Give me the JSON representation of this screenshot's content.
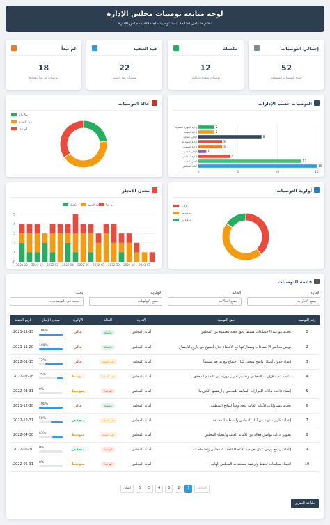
{
  "header": {
    "title": "لوحة متابعة توصيات مجلس الإدارة",
    "subtitle": "نظام متكامل لمتابعة تنفيذ توصيات اجتماعات مجلس الإدارة"
  },
  "stats": [
    {
      "title": "إجمالي التوصيات",
      "value": 52,
      "subtitle": "جميع التوصيات المسجلة",
      "color": "#7f8c8d"
    },
    {
      "title": "مكتملة",
      "value": 12,
      "subtitle": "توصيات منفذة بالكامل",
      "color": "#27ae60"
    },
    {
      "title": "قيد التنفيذ",
      "value": 22,
      "subtitle": "توصيات قيد التنفيذ",
      "color": "#3498db"
    },
    {
      "title": "لم تبدأ",
      "value": 18,
      "subtitle": "توصيات لم يبدأ تنفيذها",
      "color": "#e67e22"
    }
  ],
  "chart_data": [
    {
      "type": "doughnut",
      "title": "حالة التوصيات",
      "categories": [
        "مكتملة",
        "قيد التنفيذ",
        "لم تبدأ"
      ],
      "values": [
        12,
        22,
        18
      ],
      "colors": [
        "#27ae60",
        "#f39c12",
        "#e74c3c"
      ]
    },
    {
      "type": "hbar",
      "title": "التوصيات حسب الإدارات",
      "categories": [
        "إدارة الموارد البشرية",
        "إدارة الجودة",
        "الإدارة المالية",
        "إدارة المشاريع",
        "إدارة التسويق",
        "الإدارة القانونية",
        "إدارة المخاطر",
        "الإدارة العامة",
        "أمانة المجلس"
      ],
      "values": [
        2,
        2,
        8,
        3,
        3,
        1,
        4,
        13,
        15
      ],
      "colors": [
        "#27ae60",
        "#f39c12",
        "#34495e",
        "#e74c3c",
        "#e67e22",
        "#9b59b6",
        "#e74c3c",
        "#2ecc71",
        "#3498db"
      ],
      "xlim": [
        0,
        15
      ],
      "xticks": [
        0,
        5,
        10,
        15
      ],
      "grid": true
    },
    {
      "type": "doughnut",
      "title": "أولوية التوصيات",
      "categories": [
        "عالي",
        "متوسط",
        "منخفض"
      ],
      "values": [
        20,
        24,
        8
      ],
      "colors": [
        "#e74c3c",
        "#f39c12",
        "#27ae60"
      ]
    },
    {
      "type": "stacked_bar",
      "title": "معدل الإنجاز",
      "categories": [
        "2021-10",
        null,
        "2021-12",
        null,
        "2022-02",
        null,
        "2022-04",
        null,
        "2022-06",
        null,
        "2022-08",
        null,
        "2022-10",
        null,
        "2022-12",
        null,
        "2023-02",
        null
      ],
      "series": [
        {
          "name": "مكتملة",
          "color": "#27ae60",
          "values": [
            2,
            1,
            1,
            2,
            1,
            0,
            2,
            1,
            0,
            1,
            0,
            0,
            0,
            1,
            0,
            0,
            0,
            0
          ]
        },
        {
          "name": "قيد التنفيذ",
          "color": "#f39c12",
          "values": [
            1,
            2,
            2,
            1,
            2,
            3,
            1,
            2,
            3,
            2,
            2,
            3,
            2,
            1,
            2,
            1,
            1,
            0
          ]
        },
        {
          "name": "لم تبدأ",
          "color": "#e74c3c",
          "values": [
            1,
            1,
            1,
            0,
            1,
            1,
            1,
            2,
            1,
            1,
            1,
            1,
            2,
            1,
            1,
            1,
            0,
            1
          ]
        }
      ],
      "ylim": [
        0,
        5
      ],
      "yticks": [
        0,
        1,
        2,
        3,
        4,
        5
      ],
      "grid": true
    }
  ],
  "table": {
    "title": "قائمة التوصيات",
    "filters": [
      {
        "label": "الإدارة",
        "value": "جميع الإدارات"
      },
      {
        "label": "الحالة",
        "value": "جميع الحالات"
      },
      {
        "label": "الأولوية",
        "value": "جميع الأولويات"
      },
      {
        "label": "بحث",
        "value": "ابحث في التوصيات..."
      }
    ],
    "columns": [
      "رقم التوصية",
      "نص التوصية",
      "الإدارة",
      "الحالة",
      "الأولوية",
      "معدل الإنجاز",
      "تاريخ التنفيذ"
    ],
    "rows": [
      {
        "id": "1",
        "text": "تحديد مواعيد الاجتماعات مسبقاً وفق خطة معتمدة من المجلس",
        "dept": "أمانة المجلس",
        "status": "مكتملة",
        "priority": "عالي",
        "progress": 100,
        "progress_label": "100%",
        "date": "2021-11-15"
      },
      {
        "id": "2",
        "text": "توثيق محاضر الاجتماعات ومشاركتها مع الأعضاء خلال أسبوع من تاريخ الاجتماع",
        "dept": "أمانة المجلس",
        "status": "مكتملة",
        "priority": "عالي",
        "progress": 100,
        "progress_label": "100%",
        "date": "2021-11-20"
      },
      {
        "id": "3",
        "text": "إعداد جدول أعمال واضح ومحدد لكل اجتماع مع توزيعه مسبقاً",
        "dept": "أمانة المجلس",
        "status": "قيد التنفيذ",
        "priority": "عالي",
        "progress": 75,
        "progress_label": "75%",
        "date": "2022-01-15"
      },
      {
        "id": "4",
        "text": "متابعة تنفيذ قرارات المجلس وتقديم تقارير دورية عن التقدم المحقق",
        "dept": "أمانة المجلس",
        "status": "قيد التنفيذ",
        "priority": "متوسط",
        "progress": 25,
        "progress_label": "25%",
        "date": "2022-02-28"
      },
      {
        "id": "5",
        "text": "إنشاء قاعدة بيانات للقرارات السابقة للمجلس وأرشفتها إلكترونياً",
        "dept": "أمانة المجلس",
        "status": "لم تبدأ",
        "priority": "متوسط",
        "progress": 0,
        "progress_label": "0%",
        "date": "2022-03-31"
      },
      {
        "id": "6",
        "text": "تحديد مسؤوليات الأمانة العامة بدقة وفقاً للوائح المنظمة",
        "dept": "أمانة المجلس",
        "status": "مكتملة",
        "priority": "عالي",
        "progress": 100,
        "progress_label": "100%",
        "date": "2021-12-10"
      },
      {
        "id": "7",
        "text": "إعداد تقارير سنوية عن أداء المجلس وأنشطته المختلفة",
        "dept": "أمانة المجلس",
        "status": "قيد التنفيذ",
        "priority": "منخفض",
        "progress": 50,
        "progress_label": "50%",
        "date": "2022-12-31"
      },
      {
        "id": "8",
        "text": "تطوير أدوات تواصل فعالة بين الأمانة العامة وأعضاء المجلس",
        "dept": "أمانة المجلس",
        "status": "قيد التنفيذ",
        "priority": "متوسط",
        "progress": 45,
        "progress_label": "45%",
        "date": "2022-04-30"
      },
      {
        "id": "9",
        "text": "إعداد برنامج ورش عمل تعريفية للأعضاء الجدد بالمجلس واختصاصاته",
        "dept": "أمانة المجلس",
        "status": "لم تبدأ",
        "priority": "منخفض",
        "progress": 0,
        "progress_label": "0%",
        "date": "2022-06-30"
      },
      {
        "id": "10",
        "text": "اعتماد سياسات لحفظ وأرشفة مستندات المجلس الهامة",
        "dept": "أمانة المجلس",
        "status": "لم تبدأ",
        "priority": "متوسط",
        "progress": 0,
        "progress_label": "0%",
        "date": "2022-05-31"
      }
    ]
  },
  "pagination": {
    "prev": "السابق",
    "pages": [
      1,
      2,
      3,
      4,
      5,
      6
    ],
    "next": "التالي"
  },
  "print": "طباعة التقرير"
}
